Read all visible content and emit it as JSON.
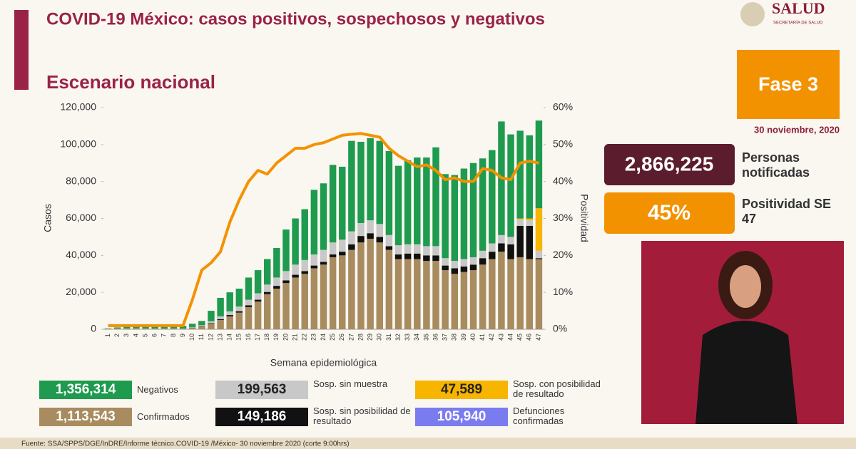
{
  "header": {
    "title": "COVID-19 México: casos positivos, sospechosos y negativos",
    "subtitle": "Escenario nacional",
    "logo": "SALUD",
    "logo_sub": "SECRETARÍA DE SALUD"
  },
  "panel": {
    "phase": "Fase 3",
    "date": "30 noviembre, 2020",
    "notified": "2,866,225",
    "notified_label": "Personas notificadas",
    "positivity": "45%",
    "positivity_label": "Positividad SE 47"
  },
  "chart_data": {
    "type": "stacked-bar-line",
    "xlabel": "Semana epidemiológica",
    "ylabel": "Casos",
    "y2label": "Positividad",
    "categories": [
      1,
      2,
      3,
      4,
      5,
      6,
      7,
      8,
      9,
      10,
      11,
      12,
      13,
      14,
      15,
      16,
      17,
      18,
      19,
      20,
      21,
      22,
      23,
      24,
      25,
      26,
      27,
      28,
      29,
      30,
      31,
      32,
      33,
      34,
      35,
      36,
      37,
      38,
      39,
      40,
      41,
      42,
      43,
      44,
      45,
      46,
      47
    ],
    "ylim": [
      0,
      120000
    ],
    "yticks": [
      0,
      {
        "value": 20000,
        "label": "20,000"
      },
      {
        "value": 40000,
        "label": "40,000"
      },
      {
        "value": 60000,
        "label": "60,000"
      },
      {
        "value": 80000,
        "label": "80,000"
      },
      {
        "value": 100000,
        "label": "100,000"
      },
      {
        "value": 120000,
        "label": "120,000"
      }
    ],
    "y2lim": [
      0,
      60
    ],
    "y2ticks": [
      {
        "value": 0,
        "label": "0%"
      },
      {
        "value": 10,
        "label": "10%"
      },
      {
        "value": 20,
        "label": "20%"
      },
      {
        "value": 30,
        "label": "30%"
      },
      {
        "value": 40,
        "label": "40%"
      },
      {
        "value": 50,
        "label": "50%"
      },
      {
        "value": 60,
        "label": "60%"
      }
    ],
    "series": [
      {
        "name": "Confirmados",
        "total": "1,113,543",
        "color": "#a88b5e",
        "values": [
          200,
          300,
          400,
          400,
          300,
          300,
          300,
          300,
          300,
          800,
          1500,
          3000,
          5000,
          7000,
          9000,
          12000,
          15000,
          19000,
          22000,
          25000,
          28000,
          30000,
          33000,
          35000,
          39000,
          40000,
          43000,
          47000,
          49000,
          47000,
          43000,
          38000,
          38000,
          38000,
          37000,
          37000,
          32000,
          30000,
          31000,
          32000,
          35000,
          38000,
          42000,
          38000,
          39000,
          38000,
          38000
        ]
      },
      {
        "name": "Sosp. sin posibilidad de resultado",
        "total": "149,186",
        "color": "#111111",
        "values": [
          0,
          0,
          0,
          0,
          0,
          0,
          0,
          0,
          0,
          100,
          200,
          300,
          500,
          700,
          800,
          1000,
          1000,
          1200,
          1500,
          1500,
          1500,
          1500,
          1500,
          1500,
          1500,
          2000,
          3000,
          3500,
          3000,
          3000,
          2000,
          2500,
          3000,
          3000,
          3000,
          3000,
          2500,
          3000,
          3000,
          3000,
          3500,
          4000,
          4500,
          8000,
          17000,
          18000,
          500
        ]
      },
      {
        "name": "Sosp. sin muestra",
        "total": "199,563",
        "color": "#c8c8c8",
        "values": [
          100,
          100,
          100,
          100,
          100,
          100,
          100,
          100,
          100,
          300,
          500,
          1000,
          1500,
          2000,
          2500,
          3000,
          3500,
          4000,
          4500,
          5000,
          5500,
          6000,
          6000,
          6500,
          6500,
          6500,
          7000,
          7000,
          7000,
          7000,
          6000,
          5000,
          5000,
          5000,
          5000,
          5000,
          4000,
          4000,
          4000,
          4000,
          4000,
          4500,
          4500,
          4000,
          3500,
          3000,
          4000
        ]
      },
      {
        "name": "Sosp. con posibilidad de resultado",
        "total": "47,589",
        "color": "#f7b500",
        "values": [
          0,
          0,
          0,
          0,
          0,
          0,
          0,
          0,
          0,
          0,
          0,
          0,
          0,
          0,
          0,
          0,
          0,
          0,
          0,
          0,
          0,
          0,
          0,
          0,
          0,
          0,
          0,
          0,
          0,
          0,
          0,
          0,
          0,
          0,
          0,
          0,
          0,
          0,
          0,
          0,
          0,
          0,
          0,
          0,
          500,
          1000,
          23000
        ]
      },
      {
        "name": "Negativos",
        "total": "1,356,314",
        "color": "#1e9b4e",
        "values": [
          200,
          600,
          1000,
          1500,
          1400,
          1400,
          1400,
          1400,
          1400,
          1800,
          2300,
          5700,
          10000,
          10300,
          9700,
          12000,
          12500,
          13800,
          16000,
          22500,
          25000,
          27500,
          35000,
          36000,
          42000,
          39500,
          49000,
          44000,
          44500,
          45000,
          45500,
          43000,
          45500,
          47000,
          48000,
          53500,
          45500,
          46500,
          49000,
          51000,
          50000,
          50500,
          61500,
          55500,
          47500,
          45000,
          47500
        ]
      },
      {
        "axis": "y2",
        "color": "#f39200",
        "values": [
          1,
          1,
          1,
          1,
          1,
          1,
          1,
          1,
          1,
          8,
          16,
          18,
          21,
          29,
          35,
          40,
          43,
          42,
          45,
          47,
          49,
          49,
          50,
          50.5,
          51.5,
          52.5,
          52.8,
          53,
          52.5,
          52,
          49,
          47,
          45.5,
          44,
          44.5,
          43,
          40.5,
          41,
          40,
          40,
          43.5,
          43,
          41,
          40.5,
          45,
          45.5,
          45
        ]
      }
    ],
    "extra_legend": {
      "name": "Defunciones confirmadas",
      "total": "105,940",
      "color": "#7b7bf0"
    }
  },
  "footer": "Fuente: SSA/SPPS/DGE/InDRE/Informe técnico.COVID-19 /México- 30 noviembre 2020 (corte 9:00hrs)"
}
